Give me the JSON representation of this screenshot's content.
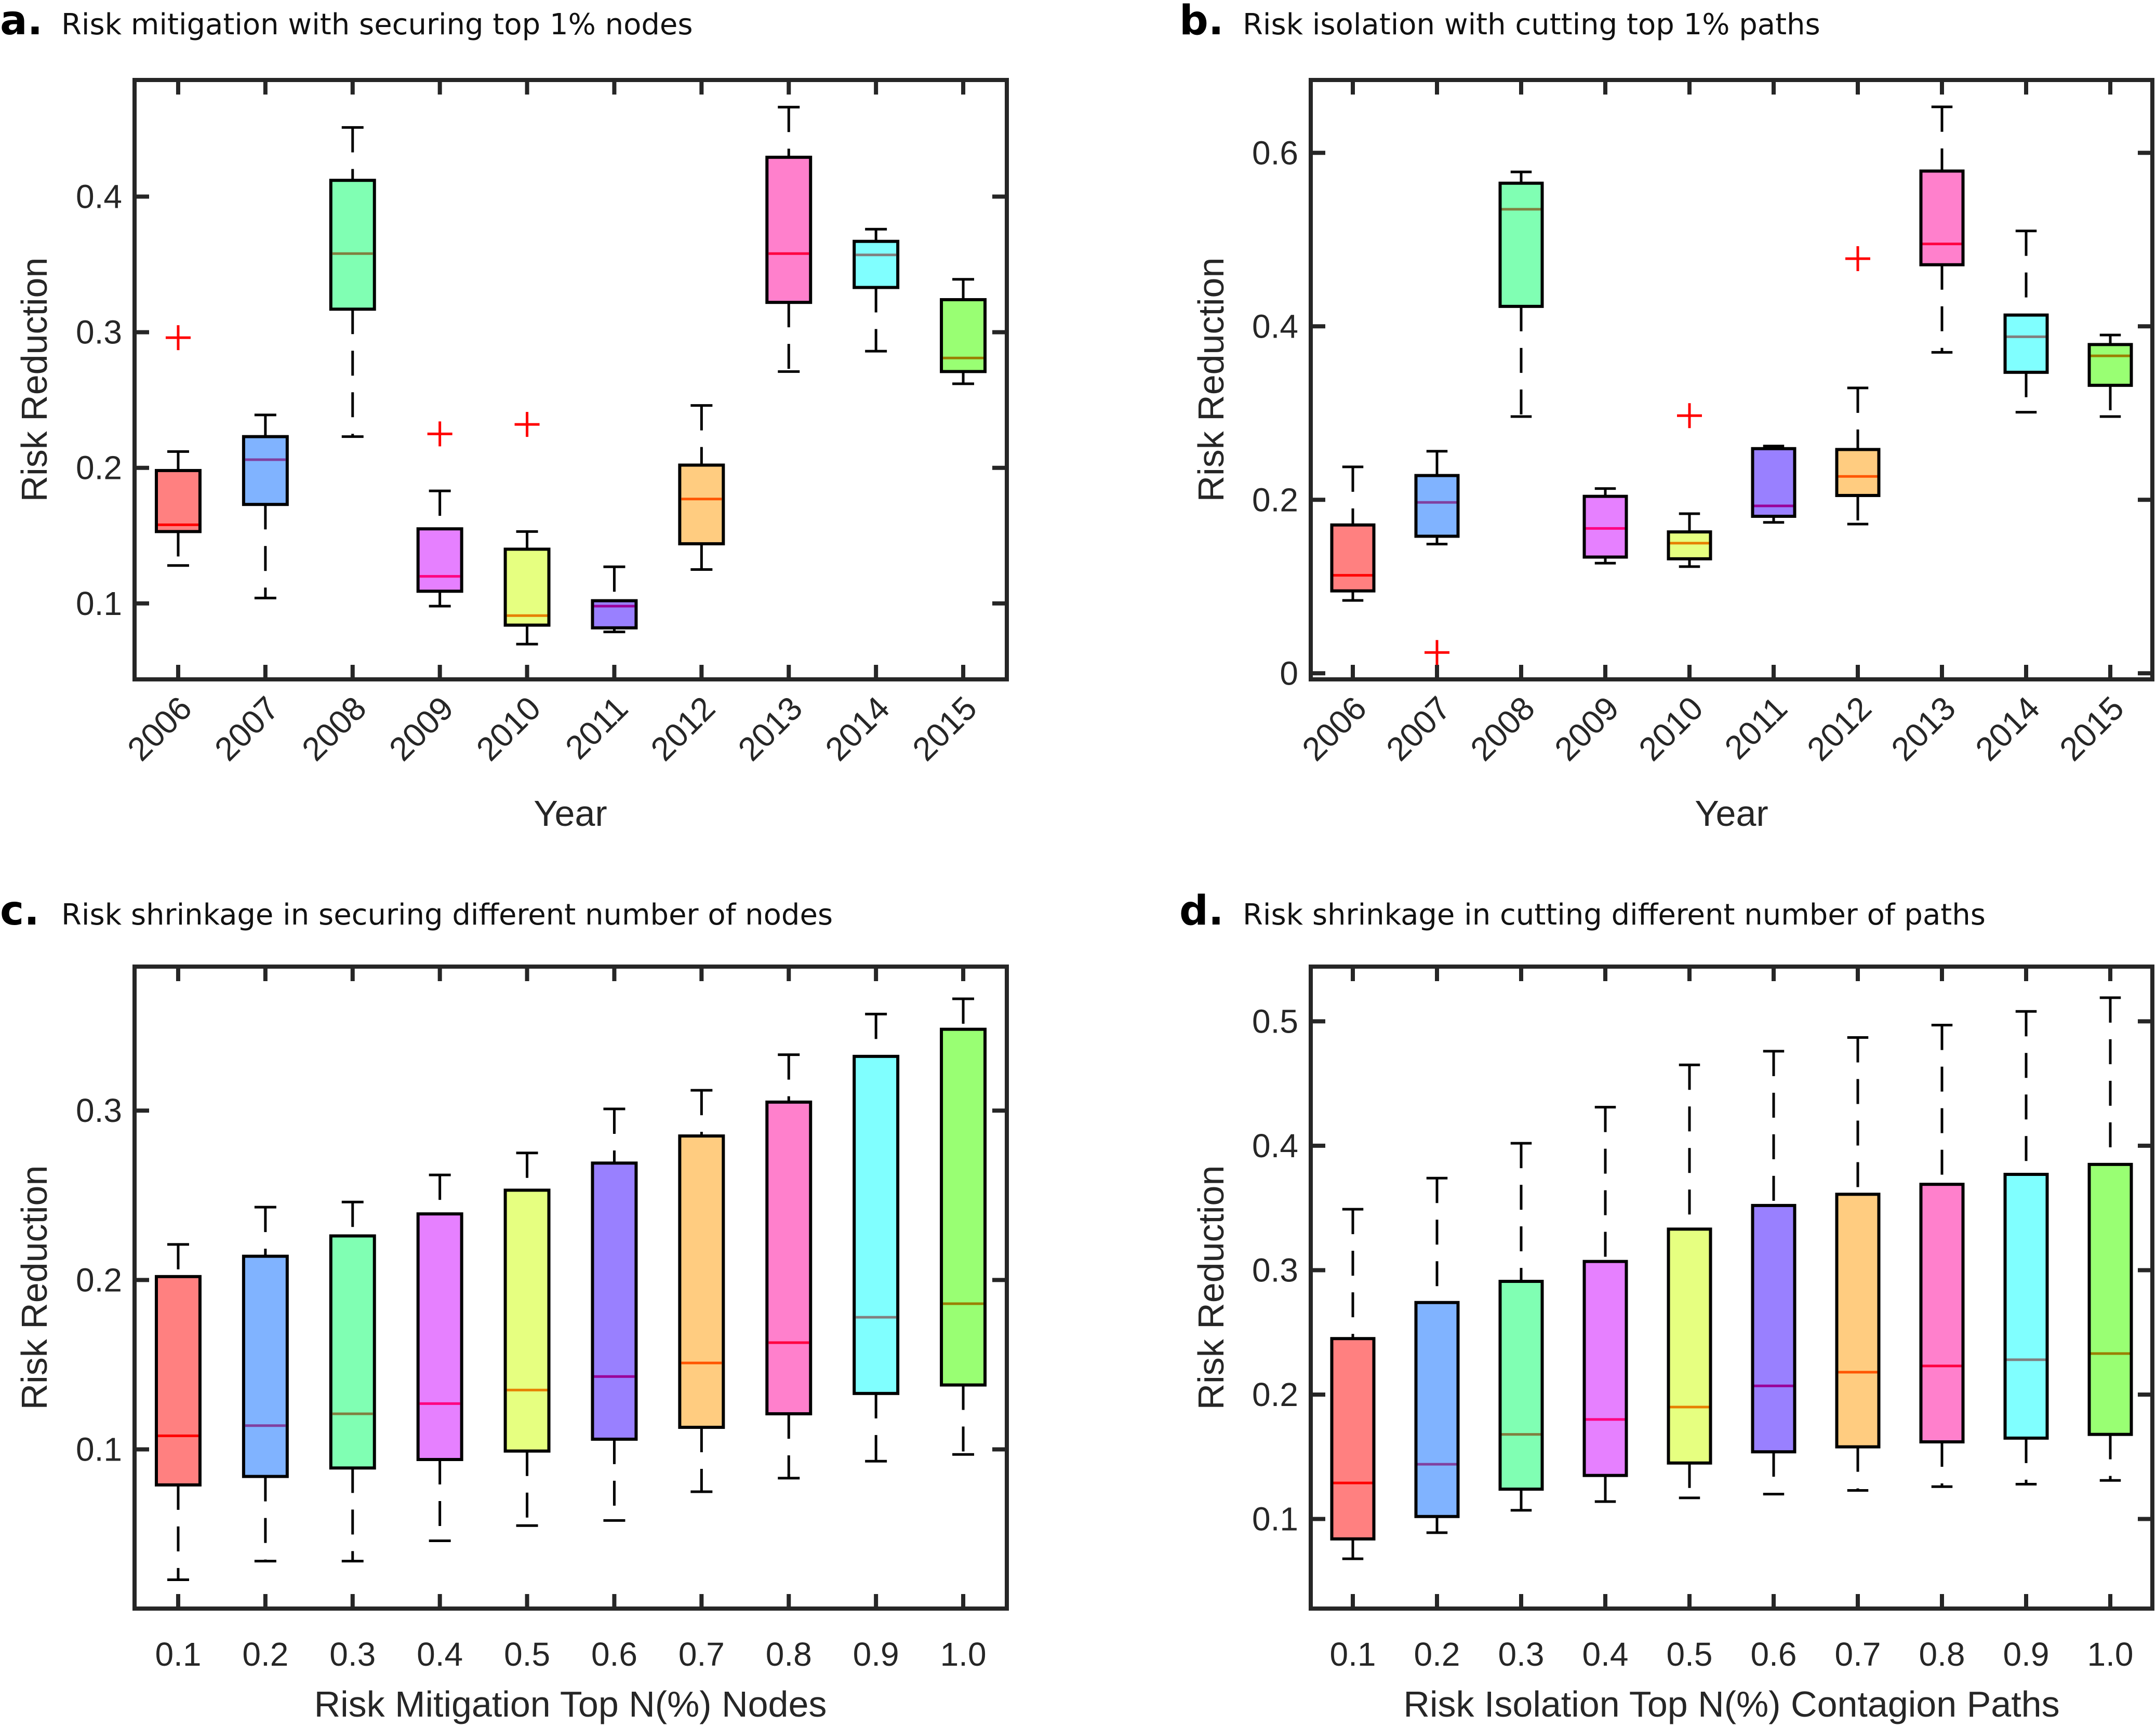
{
  "figure": {
    "box_colors": [
      "#FF8080",
      "#80B3FF",
      "#80FFB3",
      "#E680FF",
      "#E6FF80",
      "#9980FF",
      "#FFCC80",
      "#FF80CC",
      "#80FFFF",
      "#99FF73"
    ],
    "median_colors": [
      "#FF0000",
      "#8040A0",
      "#808040",
      "#FF0080",
      "#E68000",
      "#990099",
      "#FF5500",
      "#FF0040",
      "#808080",
      "#998000"
    ],
    "outlier_color": "#FF0000"
  },
  "chart_data": [
    {
      "id": "a",
      "type": "box",
      "letter": "a.",
      "title": "Risk mitigation with securing top 1% nodes",
      "xlabel": "Year",
      "ylabel": "Risk Reduction",
      "categories": [
        "2006",
        "2007",
        "2008",
        "2009",
        "2010",
        "2011",
        "2012",
        "2013",
        "2014",
        "2015"
      ],
      "x_tick_rotation_deg": 45,
      "ylim": [
        0.044,
        0.486
      ],
      "yticks": [
        0.1,
        0.2,
        0.3,
        0.4
      ],
      "ytick_labels": [
        "0.1",
        "0.2",
        "0.3",
        "0.4"
      ],
      "boxes": [
        {
          "low": 0.128,
          "q1": 0.153,
          "median": 0.158,
          "q3": 0.198,
          "high": 0.212,
          "outliers": [
            0.296
          ]
        },
        {
          "low": 0.104,
          "q1": 0.173,
          "median": 0.206,
          "q3": 0.223,
          "high": 0.239,
          "outliers": []
        },
        {
          "low": 0.223,
          "q1": 0.317,
          "median": 0.358,
          "q3": 0.412,
          "high": 0.451,
          "outliers": []
        },
        {
          "low": 0.098,
          "q1": 0.109,
          "median": 0.12,
          "q3": 0.155,
          "high": 0.183,
          "outliers": [
            0.225
          ]
        },
        {
          "low": 0.07,
          "q1": 0.084,
          "median": 0.091,
          "q3": 0.14,
          "high": 0.153,
          "outliers": [
            0.232
          ]
        },
        {
          "low": 0.079,
          "q1": 0.082,
          "median": 0.098,
          "q3": 0.102,
          "high": 0.127,
          "outliers": []
        },
        {
          "low": 0.125,
          "q1": 0.144,
          "median": 0.177,
          "q3": 0.202,
          "high": 0.246,
          "outliers": []
        },
        {
          "low": 0.271,
          "q1": 0.322,
          "median": 0.358,
          "q3": 0.429,
          "high": 0.466,
          "outliers": []
        },
        {
          "low": 0.286,
          "q1": 0.333,
          "median": 0.357,
          "q3": 0.367,
          "high": 0.376,
          "outliers": []
        },
        {
          "low": 0.262,
          "q1": 0.271,
          "median": 0.281,
          "q3": 0.324,
          "high": 0.339,
          "outliers": []
        }
      ]
    },
    {
      "id": "b",
      "type": "box",
      "letter": "b.",
      "title": "Risk isolation with cutting top 1% paths",
      "xlabel": "Year",
      "ylabel": "Risk Reduction",
      "categories": [
        "2006",
        "2007",
        "2008",
        "2009",
        "2010",
        "2011",
        "2012",
        "2013",
        "2014",
        "2015"
      ],
      "x_tick_rotation_deg": 45,
      "ylim": [
        -0.007,
        0.684
      ],
      "yticks": [
        0,
        0.2,
        0.4,
        0.6
      ],
      "ytick_labels": [
        "0",
        "0.2",
        "0.4",
        "0.6"
      ],
      "boxes": [
        {
          "low": 0.084,
          "q1": 0.095,
          "median": 0.113,
          "q3": 0.171,
          "high": 0.238,
          "outliers": []
        },
        {
          "low": 0.149,
          "q1": 0.158,
          "median": 0.197,
          "q3": 0.228,
          "high": 0.256,
          "outliers": [
            0.024
          ]
        },
        {
          "low": 0.296,
          "q1": 0.423,
          "median": 0.535,
          "q3": 0.565,
          "high": 0.578,
          "outliers": []
        },
        {
          "low": 0.127,
          "q1": 0.134,
          "median": 0.167,
          "q3": 0.204,
          "high": 0.213,
          "outliers": []
        },
        {
          "low": 0.123,
          "q1": 0.132,
          "median": 0.15,
          "q3": 0.163,
          "high": 0.184,
          "outliers": [
            0.297
          ]
        },
        {
          "low": 0.174,
          "q1": 0.181,
          "median": 0.193,
          "q3": 0.259,
          "high": 0.262,
          "outliers": []
        },
        {
          "low": 0.172,
          "q1": 0.205,
          "median": 0.227,
          "q3": 0.258,
          "high": 0.329,
          "outliers": [
            0.478
          ]
        },
        {
          "low": 0.37,
          "q1": 0.471,
          "median": 0.495,
          "q3": 0.579,
          "high": 0.653,
          "outliers": []
        },
        {
          "low": 0.301,
          "q1": 0.347,
          "median": 0.388,
          "q3": 0.413,
          "high": 0.51,
          "outliers": []
        },
        {
          "low": 0.296,
          "q1": 0.332,
          "median": 0.366,
          "q3": 0.379,
          "high": 0.39,
          "outliers": []
        }
      ]
    },
    {
      "id": "c",
      "type": "box",
      "letter": "c.",
      "title": "Risk shrinkage in securing different number of nodes",
      "xlabel": "Risk Mitigation Top N(%) Nodes",
      "ylabel": "Risk Reduction",
      "categories": [
        "0.1",
        "0.2",
        "0.3",
        "0.4",
        "0.5",
        "0.6",
        "0.7",
        "0.8",
        "0.9",
        "1.0"
      ],
      "x_tick_rotation_deg": 0,
      "ylim": [
        0.006,
        0.385
      ],
      "yticks": [
        0.1,
        0.2,
        0.3
      ],
      "ytick_labels": [
        "0.1",
        "0.2",
        "0.3"
      ],
      "boxes": [
        {
          "low": 0.023,
          "q1": 0.079,
          "median": 0.108,
          "q3": 0.202,
          "high": 0.221,
          "outliers": []
        },
        {
          "low": 0.034,
          "q1": 0.084,
          "median": 0.114,
          "q3": 0.214,
          "high": 0.243,
          "outliers": []
        },
        {
          "low": 0.034,
          "q1": 0.089,
          "median": 0.121,
          "q3": 0.226,
          "high": 0.246,
          "outliers": []
        },
        {
          "low": 0.046,
          "q1": 0.094,
          "median": 0.127,
          "q3": 0.239,
          "high": 0.262,
          "outliers": []
        },
        {
          "low": 0.055,
          "q1": 0.099,
          "median": 0.135,
          "q3": 0.253,
          "high": 0.275,
          "outliers": []
        },
        {
          "low": 0.058,
          "q1": 0.106,
          "median": 0.143,
          "q3": 0.269,
          "high": 0.301,
          "outliers": []
        },
        {
          "low": 0.075,
          "q1": 0.113,
          "median": 0.151,
          "q3": 0.285,
          "high": 0.312,
          "outliers": []
        },
        {
          "low": 0.083,
          "q1": 0.121,
          "median": 0.163,
          "q3": 0.305,
          "high": 0.333,
          "outliers": []
        },
        {
          "low": 0.093,
          "q1": 0.133,
          "median": 0.178,
          "q3": 0.332,
          "high": 0.357,
          "outliers": []
        },
        {
          "low": 0.097,
          "q1": 0.138,
          "median": 0.186,
          "q3": 0.348,
          "high": 0.366,
          "outliers": []
        }
      ]
    },
    {
      "id": "d",
      "type": "box",
      "letter": "d.",
      "title": "Risk shrinkage in cutting different number of paths",
      "xlabel": "Risk Isolation Top N(%) Contagion Paths",
      "ylabel": "Risk Reduction",
      "categories": [
        "0.1",
        "0.2",
        "0.3",
        "0.4",
        "0.5",
        "0.6",
        "0.7",
        "0.8",
        "0.9",
        "1.0"
      ],
      "x_tick_rotation_deg": 0,
      "ylim": [
        0.028,
        0.544
      ],
      "yticks": [
        0.1,
        0.2,
        0.3,
        0.4,
        0.5
      ],
      "ytick_labels": [
        "0.1",
        "0.2",
        "0.3",
        "0.4",
        "0.5"
      ],
      "boxes": [
        {
          "low": 0.068,
          "q1": 0.084,
          "median": 0.129,
          "q3": 0.245,
          "high": 0.349,
          "outliers": []
        },
        {
          "low": 0.089,
          "q1": 0.102,
          "median": 0.144,
          "q3": 0.274,
          "high": 0.374,
          "outliers": []
        },
        {
          "low": 0.107,
          "q1": 0.124,
          "median": 0.168,
          "q3": 0.291,
          "high": 0.402,
          "outliers": []
        },
        {
          "low": 0.114,
          "q1": 0.135,
          "median": 0.18,
          "q3": 0.307,
          "high": 0.431,
          "outliers": []
        },
        {
          "low": 0.117,
          "q1": 0.145,
          "median": 0.19,
          "q3": 0.333,
          "high": 0.465,
          "outliers": []
        },
        {
          "low": 0.12,
          "q1": 0.154,
          "median": 0.207,
          "q3": 0.352,
          "high": 0.476,
          "outliers": []
        },
        {
          "low": 0.123,
          "q1": 0.158,
          "median": 0.218,
          "q3": 0.361,
          "high": 0.487,
          "outliers": []
        },
        {
          "low": 0.126,
          "q1": 0.162,
          "median": 0.223,
          "q3": 0.369,
          "high": 0.497,
          "outliers": []
        },
        {
          "low": 0.128,
          "q1": 0.165,
          "median": 0.228,
          "q3": 0.377,
          "high": 0.508,
          "outliers": []
        },
        {
          "low": 0.131,
          "q1": 0.168,
          "median": 0.233,
          "q3": 0.385,
          "high": 0.519,
          "outliers": []
        }
      ]
    }
  ]
}
